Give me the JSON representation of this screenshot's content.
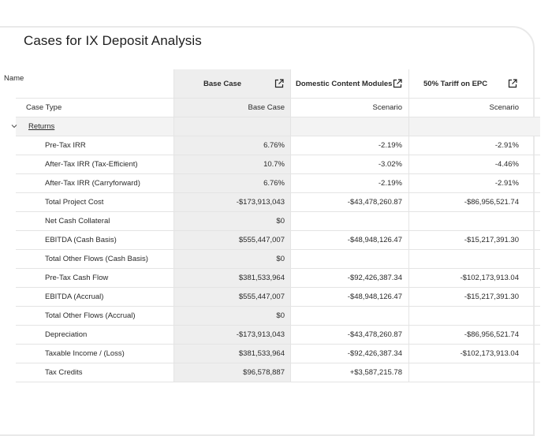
{
  "page_title": "Cases for IX Deposit Analysis",
  "table": {
    "name_header": "Name",
    "columns": [
      {
        "label": "Base Case"
      },
      {
        "label": "Domestic Content Modules"
      },
      {
        "label": "50% Tariff on EPC"
      }
    ],
    "case_type_label": "Case Type",
    "case_types": [
      "Base Case",
      "Scenario",
      "Scenario"
    ],
    "group": {
      "label": "Returns",
      "expanded": true
    },
    "rows": [
      {
        "label": "Pre-Tax IRR",
        "values": [
          "6.76%",
          "-2.19%",
          "-2.91%"
        ]
      },
      {
        "label": "After-Tax IRR (Tax-Efficient)",
        "values": [
          "10.7%",
          "-3.02%",
          "-4.46%"
        ]
      },
      {
        "label": "After-Tax IRR (Carryforward)",
        "values": [
          "6.76%",
          "-2.19%",
          "-2.91%"
        ]
      },
      {
        "label": "Total Project Cost",
        "values": [
          "-$173,913,043",
          "-$43,478,260.87",
          "-$86,956,521.74"
        ]
      },
      {
        "label": "Net Cash Collateral",
        "values": [
          "$0",
          "",
          ""
        ]
      },
      {
        "label": "EBITDA (Cash Basis)",
        "values": [
          "$555,447,007",
          "-$48,948,126.47",
          "-$15,217,391.30"
        ]
      },
      {
        "label": "Total Other Flows (Cash Basis)",
        "values": [
          "$0",
          "",
          ""
        ]
      },
      {
        "label": "Pre-Tax Cash Flow",
        "values": [
          "$381,533,964",
          "-$92,426,387.34",
          "-$102,173,913.04"
        ]
      },
      {
        "label": "EBITDA (Accrual)",
        "values": [
          "$555,447,007",
          "-$48,948,126.47",
          "-$15,217,391.30"
        ]
      },
      {
        "label": "Total Other Flows (Accrual)",
        "values": [
          "$0",
          "",
          ""
        ]
      },
      {
        "label": "Depreciation",
        "values": [
          "-$173,913,043",
          "-$43,478,260.87",
          "-$86,956,521.74"
        ]
      },
      {
        "label": "Taxable Income / (Loss)",
        "values": [
          "$381,533,964",
          "-$92,426,387.34",
          "-$102,173,913.04"
        ]
      },
      {
        "label": "Tax Credits",
        "values": [
          "$96,578,887",
          "+$3,587,215.78",
          ""
        ]
      }
    ]
  }
}
